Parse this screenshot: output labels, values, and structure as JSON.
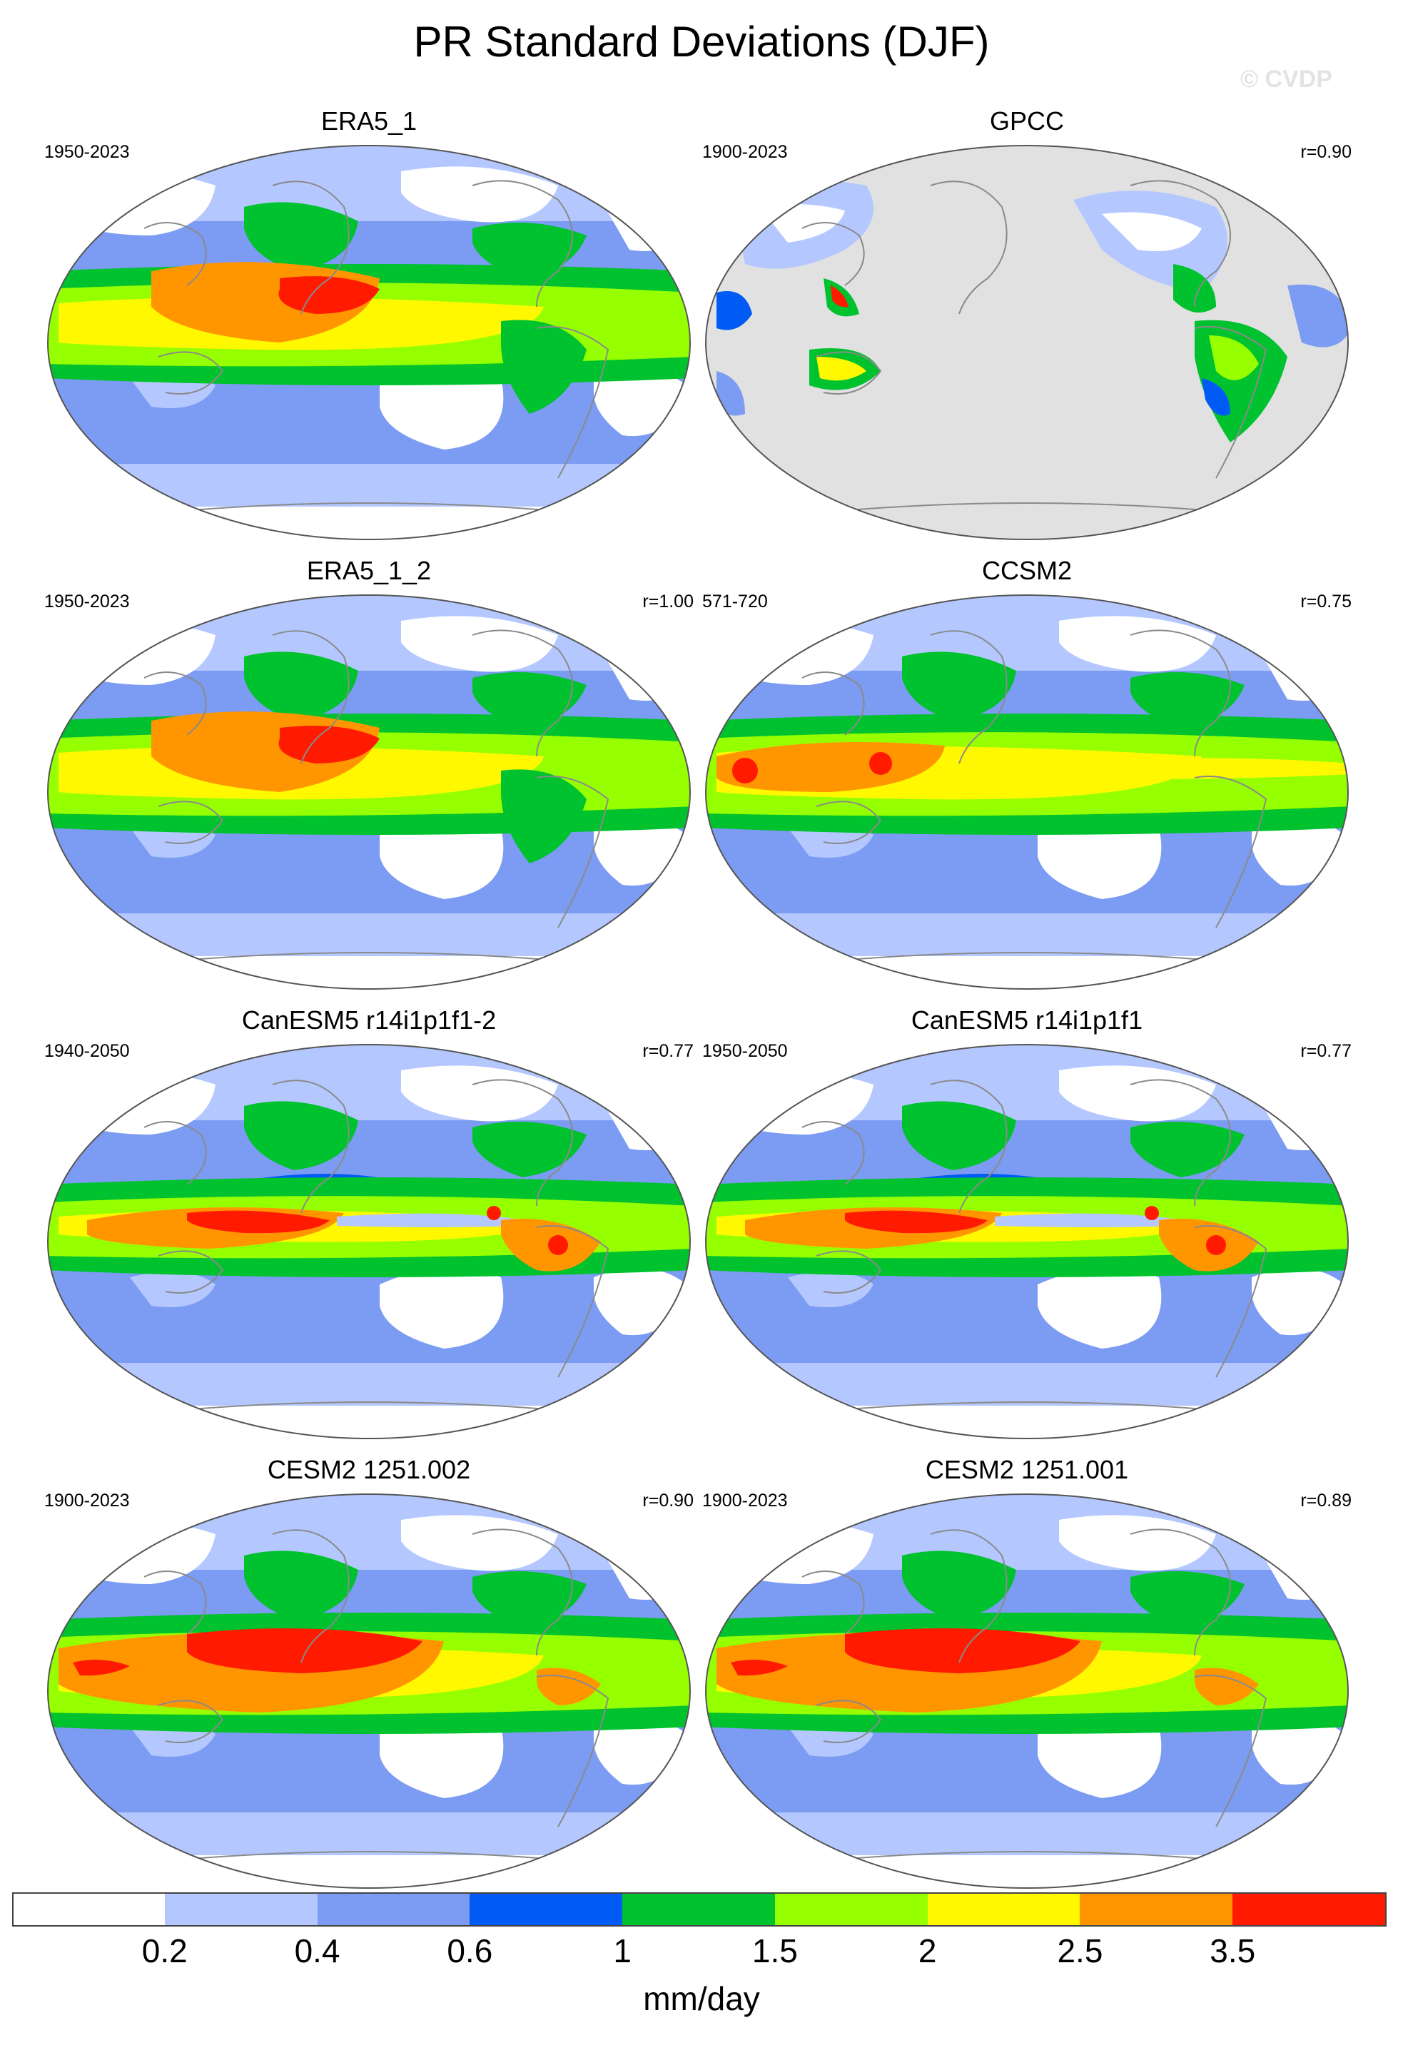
{
  "title": "PR Standard Deviations (DJF)",
  "watermark": "© CVDP",
  "panels": [
    {
      "title": "ERA5_1",
      "period": "1950-2023",
      "corr": "",
      "style": "era"
    },
    {
      "title": "GPCC",
      "period": "1900-2023",
      "corr": "r=0.90",
      "style": "gpcc"
    },
    {
      "title": "ERA5_1_2",
      "period": "1950-2023",
      "corr": "r=1.00",
      "style": "era"
    },
    {
      "title": "CCSM2",
      "period": "571-720",
      "corr": "r=0.75",
      "style": "ccsm"
    },
    {
      "title": "CanESM5 r14i1p1f1-2",
      "period": "1940-2050",
      "corr": "r=0.77",
      "style": "canesm"
    },
    {
      "title": "CanESM5 r14i1p1f1",
      "period": "1950-2050",
      "corr": "r=0.77",
      "style": "canesm"
    },
    {
      "title": "CESM2 1251.002",
      "period": "1900-2023",
      "corr": "r=0.90",
      "style": "cesm"
    },
    {
      "title": "CESM2 1251.001",
      "period": "1900-2023",
      "corr": "r=0.89",
      "style": "cesm"
    }
  ],
  "colorbar": {
    "units": "mm/day",
    "ticks": [
      "0.2",
      "0.4",
      "0.6",
      "1",
      "1.5",
      "2",
      "2.5",
      "3.5"
    ],
    "colors": [
      "#ffffff",
      "#b4c8ff",
      "#7c9bf2",
      "#005bf5",
      "#00c22e",
      "#96ff00",
      "#fff800",
      "#ff9600",
      "#ff1a00"
    ]
  }
}
